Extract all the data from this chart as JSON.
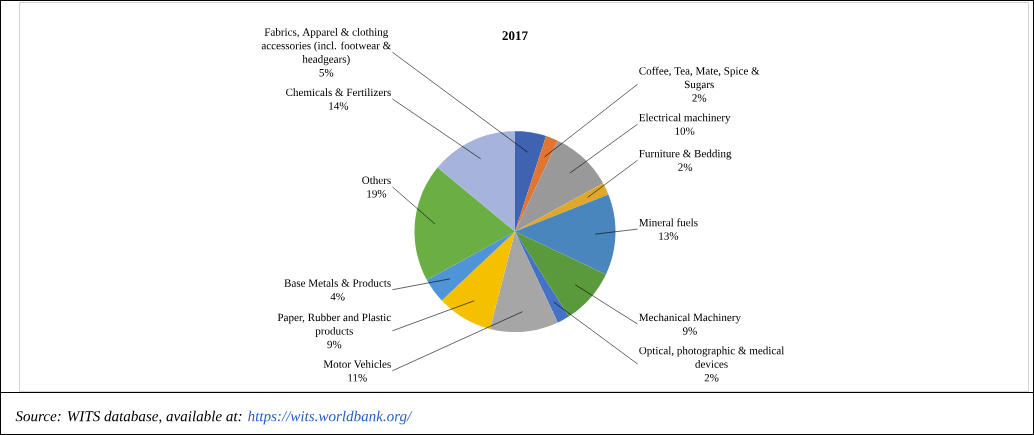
{
  "chart_data": {
    "type": "pie",
    "title": "2017",
    "categories": [
      "Fabrics, Apparel & clothing accessories (incl. footwear & headgears)",
      "Coffee, Tea, Mate, Spice & Sugars",
      "Electrical machinery",
      "Furniture & Bedding",
      "Mineral fuels",
      "Mechanical Machinery",
      "Optical, photographic & medical devices",
      "Motor Vehicles",
      "Paper, Rubber and Plastic products",
      "Base Metals & Products",
      "Others",
      "Chemicals & Fertilizers"
    ],
    "values": [
      5,
      2,
      10,
      2,
      13,
      9,
      2,
      11,
      9,
      4,
      19,
      14
    ],
    "value_labels": [
      "5%",
      "2%",
      "10%",
      "2%",
      "13%",
      "9%",
      "2%",
      "11%",
      "9%",
      "4%",
      "19%",
      "14%"
    ],
    "colors": [
      "#3f63b0",
      "#e07534",
      "#999999",
      "#e0a82a",
      "#4a86be",
      "#5a9a3c",
      "#4472c4",
      "#a6a6a6",
      "#f5c000",
      "#4f94d8",
      "#6aae44",
      "#a6b4dc"
    ],
    "annotations": [
      "Source: WITS database, available at:",
      "https://wits.worldbank.org/"
    ]
  }
}
